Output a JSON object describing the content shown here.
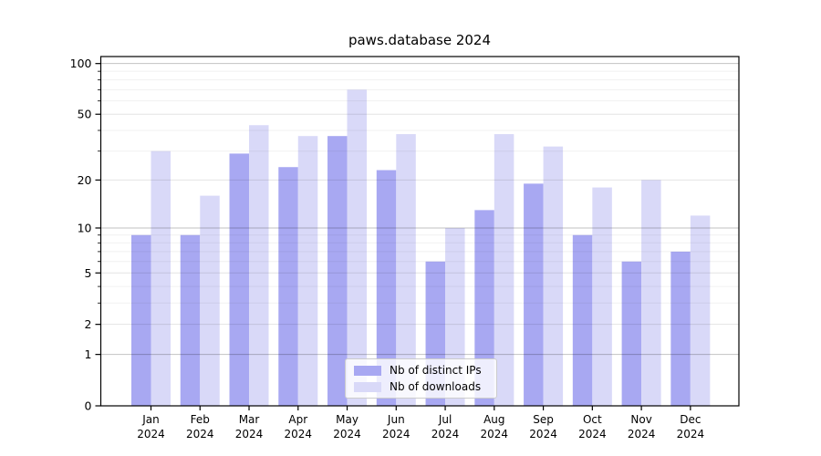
{
  "chart_data": {
    "type": "bar",
    "title": "paws.database 2024",
    "categories": [
      "Jan",
      "Feb",
      "Mar",
      "Apr",
      "May",
      "Jun",
      "Jul",
      "Aug",
      "Sep",
      "Oct",
      "Nov",
      "Dec"
    ],
    "year": "2024",
    "series": [
      {
        "name": "Nb of distinct IPs",
        "color": "#a8a8f2",
        "values": [
          9,
          9,
          29,
          24,
          37,
          23,
          6,
          13,
          19,
          9,
          6,
          7
        ]
      },
      {
        "name": "Nb of downloads",
        "color": "#d9d9f8",
        "values": [
          30,
          16,
          43,
          37,
          70,
          38,
          10,
          38,
          32,
          18,
          20,
          12
        ]
      }
    ],
    "yscale": "log1p",
    "ylim": [
      0,
      110
    ],
    "y_major_ticks": [
      0,
      1,
      2,
      5,
      10,
      20,
      50,
      100
    ],
    "y_decade_lines": [
      1,
      10,
      100
    ],
    "y_intermediate_lines": [
      2,
      5,
      20,
      50
    ],
    "y_minor_lines": [
      3,
      4,
      6,
      7,
      8,
      9,
      30,
      40,
      60,
      70,
      80,
      90
    ],
    "grid": true,
    "legend_position": "lower center",
    "colors": {
      "spine": "#000000",
      "decade_grid": "#c2c2c2",
      "major_grid": "#e4e4e4",
      "minor_grid": "#f1f1f1",
      "text": "#000000",
      "legend_border": "#cccccc"
    }
  }
}
